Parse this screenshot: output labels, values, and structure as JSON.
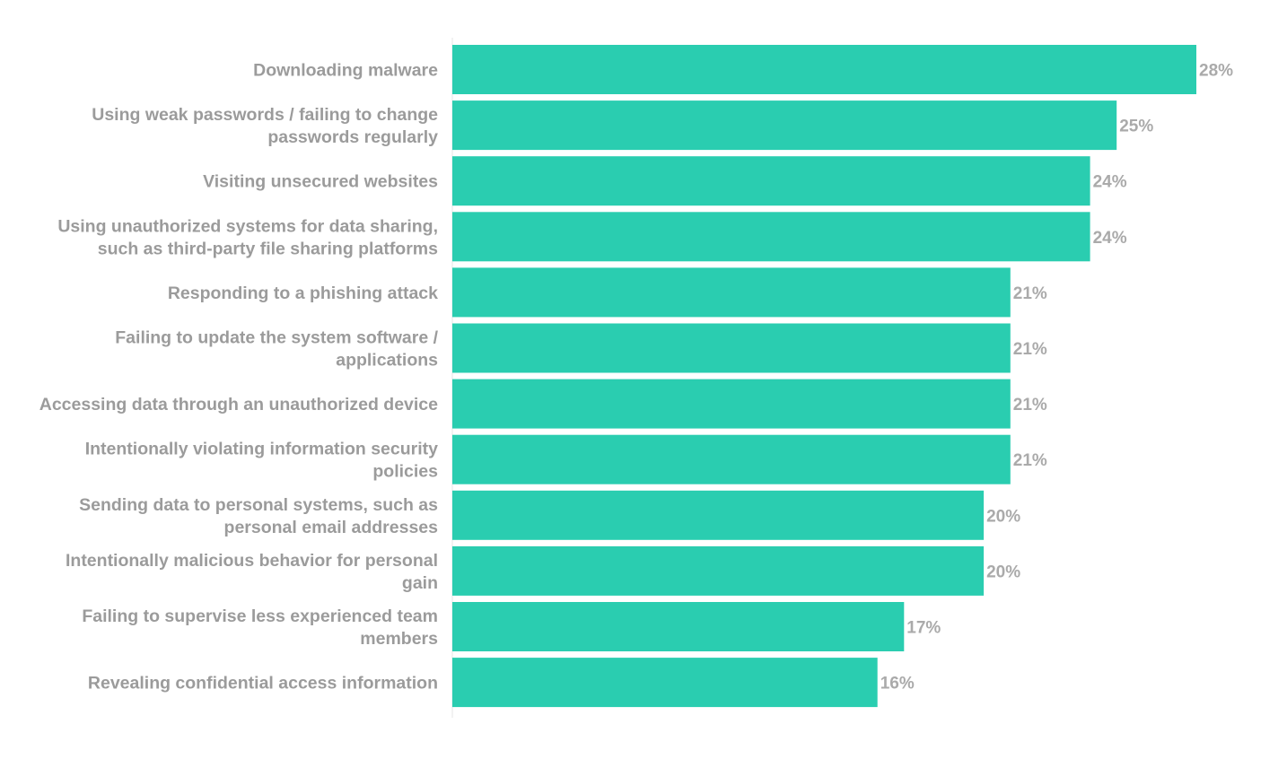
{
  "chart_data": {
    "type": "bar",
    "orientation": "horizontal",
    "title": "",
    "xlabel": "",
    "ylabel": "",
    "xlim": [
      0,
      28
    ],
    "grid": false,
    "value_suffix": "%",
    "bar_color": "#2acdb0",
    "categories": [
      [
        "Downloading malware"
      ],
      [
        "Using weak passwords / failing to change",
        "passwords regularly"
      ],
      [
        "Visiting unsecured websites"
      ],
      [
        "Using unauthorized systems for data sharing,",
        "such as third-party file sharing platforms"
      ],
      [
        "Responding to a phishing attack"
      ],
      [
        "Failing to update the system software /",
        "applications"
      ],
      [
        "Accessing data through an unauthorized device"
      ],
      [
        "Intentionally violating information security",
        "policies"
      ],
      [
        "Sending data to personal systems, such as",
        "personal email addresses"
      ],
      [
        "Intentionally malicious behavior for personal",
        "gain"
      ],
      [
        "Failing to supervise less experienced team",
        "members"
      ],
      [
        "Revealing confidential access information"
      ]
    ],
    "values": [
      28,
      25,
      24,
      24,
      21,
      21,
      21,
      21,
      20,
      20,
      17,
      16
    ]
  }
}
